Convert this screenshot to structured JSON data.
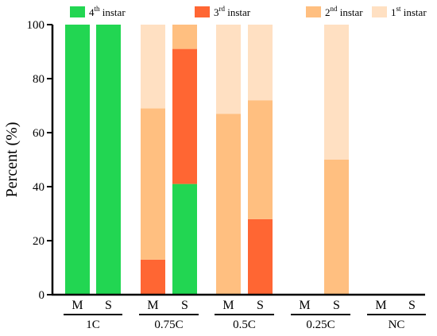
{
  "chart_data": {
    "type": "bar",
    "stacked": true,
    "ylabel": "Percent (%)",
    "ylim": [
      0,
      100
    ],
    "yticks": [
      0,
      20,
      40,
      60,
      80,
      100
    ],
    "grid": false,
    "legend_position": "top",
    "groups": [
      {
        "label": "1C",
        "bars": [
          "M",
          "S"
        ]
      },
      {
        "label": "0.75C",
        "bars": [
          "M",
          "S"
        ]
      },
      {
        "label": "0.5C",
        "bars": [
          "M",
          "S"
        ]
      },
      {
        "label": "0.25C",
        "bars": [
          "M",
          "S"
        ]
      },
      {
        "label": "NC",
        "bars": [
          "M",
          "S"
        ]
      }
    ],
    "categories": [
      "M",
      "S",
      "M",
      "S",
      "M",
      "S",
      "M",
      "S",
      "M",
      "S"
    ],
    "series": [
      {
        "name": "4th instar",
        "base": "4",
        "sup": "th",
        "rest": " instar",
        "color": "#22d652",
        "values": [
          100,
          100,
          0,
          41,
          0,
          0,
          0,
          0,
          0,
          0
        ]
      },
      {
        "name": "3rd instar",
        "base": "3",
        "sup": "rd",
        "rest": " instar",
        "color": "#ff6633",
        "values": [
          0,
          0,
          13,
          50,
          0,
          28,
          0,
          0,
          0,
          0
        ]
      },
      {
        "name": "2nd instar",
        "base": "2",
        "sup": "nd",
        "rest": " instar",
        "color": "#ffbf80",
        "values": [
          0,
          0,
          56,
          9,
          67,
          44,
          0,
          50,
          0,
          0
        ]
      },
      {
        "name": "1st instar",
        "base": "1",
        "sup": "st",
        "rest": " instar",
        "color": "#ffe0c2",
        "values": [
          0,
          0,
          31,
          0,
          33,
          28,
          0,
          50,
          0,
          0
        ]
      }
    ]
  }
}
